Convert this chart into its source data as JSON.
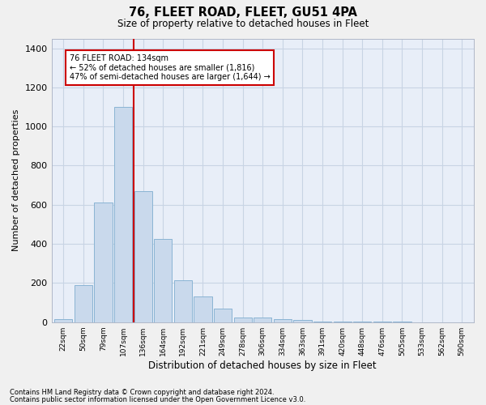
{
  "title1": "76, FLEET ROAD, FLEET, GU51 4PA",
  "title2": "Size of property relative to detached houses in Fleet",
  "xlabel": "Distribution of detached houses by size in Fleet",
  "ylabel": "Number of detached properties",
  "bar_labels": [
    "22sqm",
    "50sqm",
    "79sqm",
    "107sqm",
    "136sqm",
    "164sqm",
    "192sqm",
    "221sqm",
    "249sqm",
    "278sqm",
    "306sqm",
    "334sqm",
    "363sqm",
    "391sqm",
    "420sqm",
    "448sqm",
    "476sqm",
    "505sqm",
    "533sqm",
    "562sqm",
    "590sqm"
  ],
  "bar_values": [
    15,
    190,
    610,
    1100,
    670,
    425,
    215,
    130,
    70,
    25,
    25,
    15,
    10,
    5,
    3,
    2,
    1,
    1,
    0,
    0,
    0
  ],
  "bar_color": "#c9d9ec",
  "bar_edgecolor": "#8ab4d4",
  "property_line_index": 4,
  "annotation_line1": "76 FLEET ROAD: 134sqm",
  "annotation_line2": "← 52% of detached houses are smaller (1,816)",
  "annotation_line3": "47% of semi-detached houses are larger (1,644) →",
  "annotation_box_color": "#ffffff",
  "annotation_border_color": "#cc0000",
  "line_color": "#cc0000",
  "ylim": [
    0,
    1450
  ],
  "yticks": [
    0,
    200,
    400,
    600,
    800,
    1000,
    1200,
    1400
  ],
  "grid_color": "#c8d4e4",
  "plot_background": "#e8eef8",
  "fig_background": "#f0f0f0",
  "footer1": "Contains HM Land Registry data © Crown copyright and database right 2024.",
  "footer2": "Contains public sector information licensed under the Open Government Licence v3.0."
}
